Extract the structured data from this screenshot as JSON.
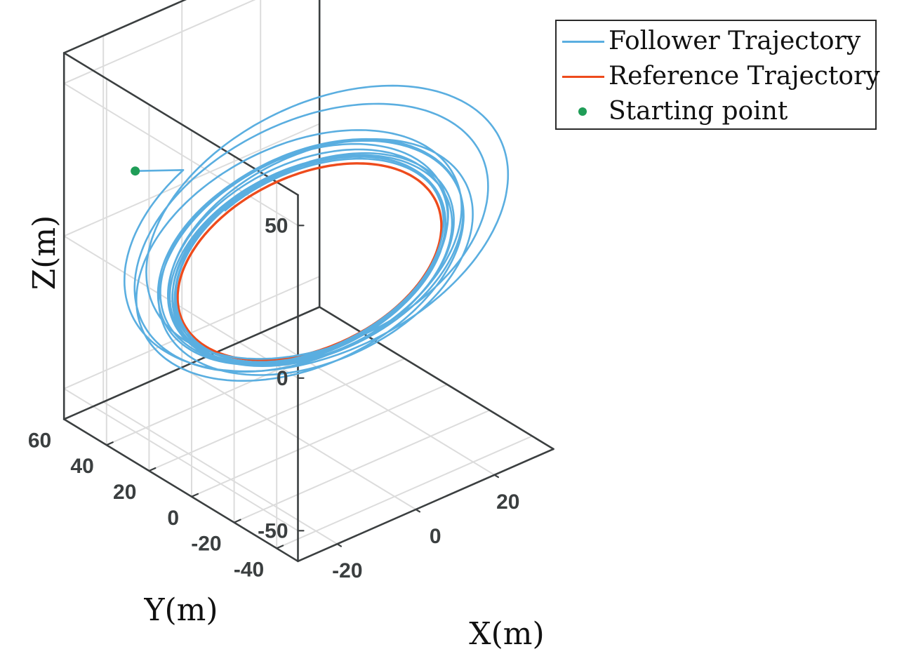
{
  "chart_data": {
    "type": "line3d",
    "xlabel": "X(m)",
    "ylabel": "Y(m)",
    "zlabel": "Z(m)",
    "xlim": [
      -30,
      35
    ],
    "ylim": [
      -50,
      60
    ],
    "zlim": [
      -60,
      60
    ],
    "x_ticks": [
      "-20",
      "0",
      "20"
    ],
    "y_ticks": [
      "-40",
      "-20",
      "0",
      "20",
      "40",
      "60"
    ],
    "z_ticks": [
      "-50",
      "0",
      "50"
    ],
    "grid": true,
    "legend_position": "outside top-right",
    "series": [
      {
        "name": "Follower Trajectory",
        "color": "#5aaee0",
        "description_points": {
          "start": [
            -20,
            45,
            22
          ]
        }
      },
      {
        "name": "Reference Trajectory",
        "color": "#ee4b1c",
        "center": [
          0,
          0,
          0
        ],
        "radius": 30
      },
      {
        "name": "Starting point",
        "color": "#1f9d57",
        "point": [
          -20,
          45,
          22
        ]
      }
    ]
  },
  "colors": {
    "axis": "#3b3f40",
    "grid": "#dcdcdc",
    "follower": "#5aaee0",
    "reference": "#ee4b1c",
    "start": "#1f9d57"
  }
}
